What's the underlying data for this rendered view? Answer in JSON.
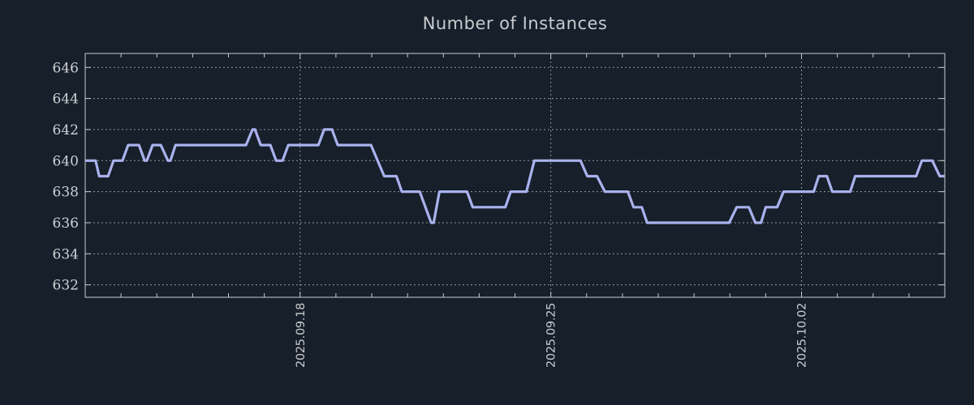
{
  "page": {
    "background": "#161f2a"
  },
  "chart_data": {
    "type": "line",
    "title": "Number of Instances",
    "legend": "none",
    "grid": {
      "enabled": true,
      "style": "dotted",
      "color": "#c3c7cb"
    },
    "border_color": "#c9ccce",
    "text_color": "#c8cbce",
    "x_axis": {
      "unit": "days-from-left-edge",
      "range": [
        0,
        24
      ],
      "minor_tick_step": 1,
      "major_ticks": [
        {
          "pos": 6,
          "label": "2025.09.18"
        },
        {
          "pos": 13,
          "label": "2025.09.25"
        },
        {
          "pos": 20,
          "label": "2025.10.02"
        }
      ],
      "label_rotation_deg": -90
    },
    "y_axis": {
      "range": [
        631.2,
        646.9
      ],
      "ticks": [
        646,
        644,
        642,
        640,
        638,
        636,
        634,
        632
      ]
    },
    "series": [
      {
        "name": "instances",
        "color": "#a9b2ed",
        "points": [
          [
            0.0,
            640
          ],
          [
            0.29,
            640
          ],
          [
            0.39,
            639
          ],
          [
            0.64,
            639
          ],
          [
            0.79,
            640
          ],
          [
            1.04,
            640
          ],
          [
            1.2,
            641
          ],
          [
            1.5,
            641
          ],
          [
            1.66,
            640
          ],
          [
            1.72,
            640
          ],
          [
            1.88,
            641
          ],
          [
            2.11,
            641
          ],
          [
            2.31,
            640
          ],
          [
            2.38,
            640
          ],
          [
            2.52,
            641
          ],
          [
            4.49,
            641
          ],
          [
            4.67,
            642
          ],
          [
            4.74,
            642
          ],
          [
            4.9,
            641
          ],
          [
            5.17,
            641
          ],
          [
            5.33,
            640
          ],
          [
            5.51,
            640
          ],
          [
            5.67,
            641
          ],
          [
            6.51,
            641
          ],
          [
            6.67,
            642
          ],
          [
            6.89,
            642
          ],
          [
            7.05,
            641
          ],
          [
            7.98,
            641
          ],
          [
            8.35,
            639
          ],
          [
            8.69,
            639
          ],
          [
            8.84,
            638
          ],
          [
            9.34,
            638
          ],
          [
            9.66,
            636
          ],
          [
            9.73,
            636
          ],
          [
            9.89,
            638
          ],
          [
            10.66,
            638
          ],
          [
            10.82,
            637
          ],
          [
            11.73,
            637
          ],
          [
            11.88,
            638
          ],
          [
            12.32,
            638
          ],
          [
            12.54,
            640
          ],
          [
            13.83,
            640
          ],
          [
            14.02,
            639
          ],
          [
            14.29,
            639
          ],
          [
            14.51,
            638
          ],
          [
            15.15,
            638
          ],
          [
            15.31,
            637
          ],
          [
            15.54,
            637
          ],
          [
            15.69,
            636
          ],
          [
            17.98,
            636
          ],
          [
            18.19,
            637
          ],
          [
            18.53,
            637
          ],
          [
            18.71,
            636
          ],
          [
            18.87,
            636
          ],
          [
            19.0,
            637
          ],
          [
            19.32,
            637
          ],
          [
            19.5,
            638
          ],
          [
            20.34,
            638
          ],
          [
            20.48,
            639
          ],
          [
            20.71,
            639
          ],
          [
            20.86,
            638
          ],
          [
            21.36,
            638
          ],
          [
            21.5,
            639
          ],
          [
            23.2,
            639
          ],
          [
            23.36,
            640
          ],
          [
            23.65,
            640
          ],
          [
            23.86,
            639
          ],
          [
            24.0,
            639
          ]
        ]
      }
    ]
  }
}
